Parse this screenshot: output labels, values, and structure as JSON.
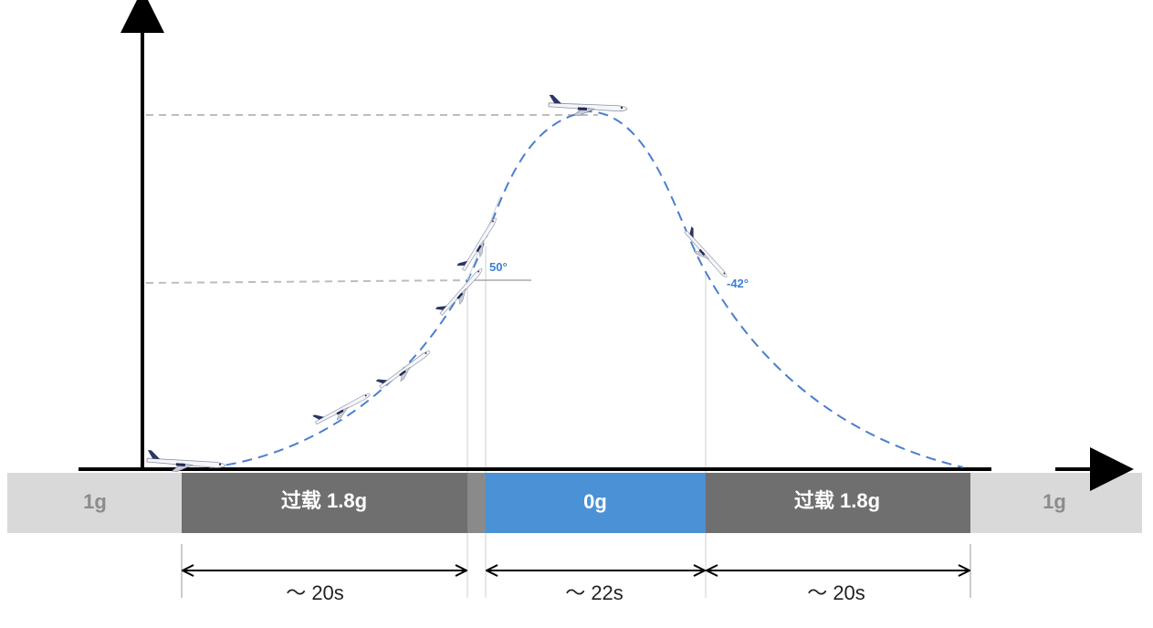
{
  "diagram": {
    "colors": {
      "curve": "#4a7fcf",
      "axis": "#000000",
      "guide": "#bdbdbd",
      "side_band": "#d9d9d9",
      "hyper_band": "#6f6f6f",
      "zero_band": "#4a91d6",
      "angle_text": "#3a7fd5"
    },
    "angles": {
      "pull_up": "50°",
      "push_over": "-42°"
    },
    "segments": [
      {
        "label": "1g",
        "type": "side"
      },
      {
        "label": "过载 1.8g",
        "type": "hyper"
      },
      {
        "label": "0g",
        "type": "zero"
      },
      {
        "label": "过载 1.8g",
        "type": "hyper"
      },
      {
        "label": "1g",
        "type": "side"
      }
    ],
    "durations": [
      {
        "label": "～ 20s"
      },
      {
        "label": "～ 22s"
      },
      {
        "label": "～ 20s"
      }
    ],
    "icons": {
      "aircraft": "airplane-icon"
    }
  }
}
